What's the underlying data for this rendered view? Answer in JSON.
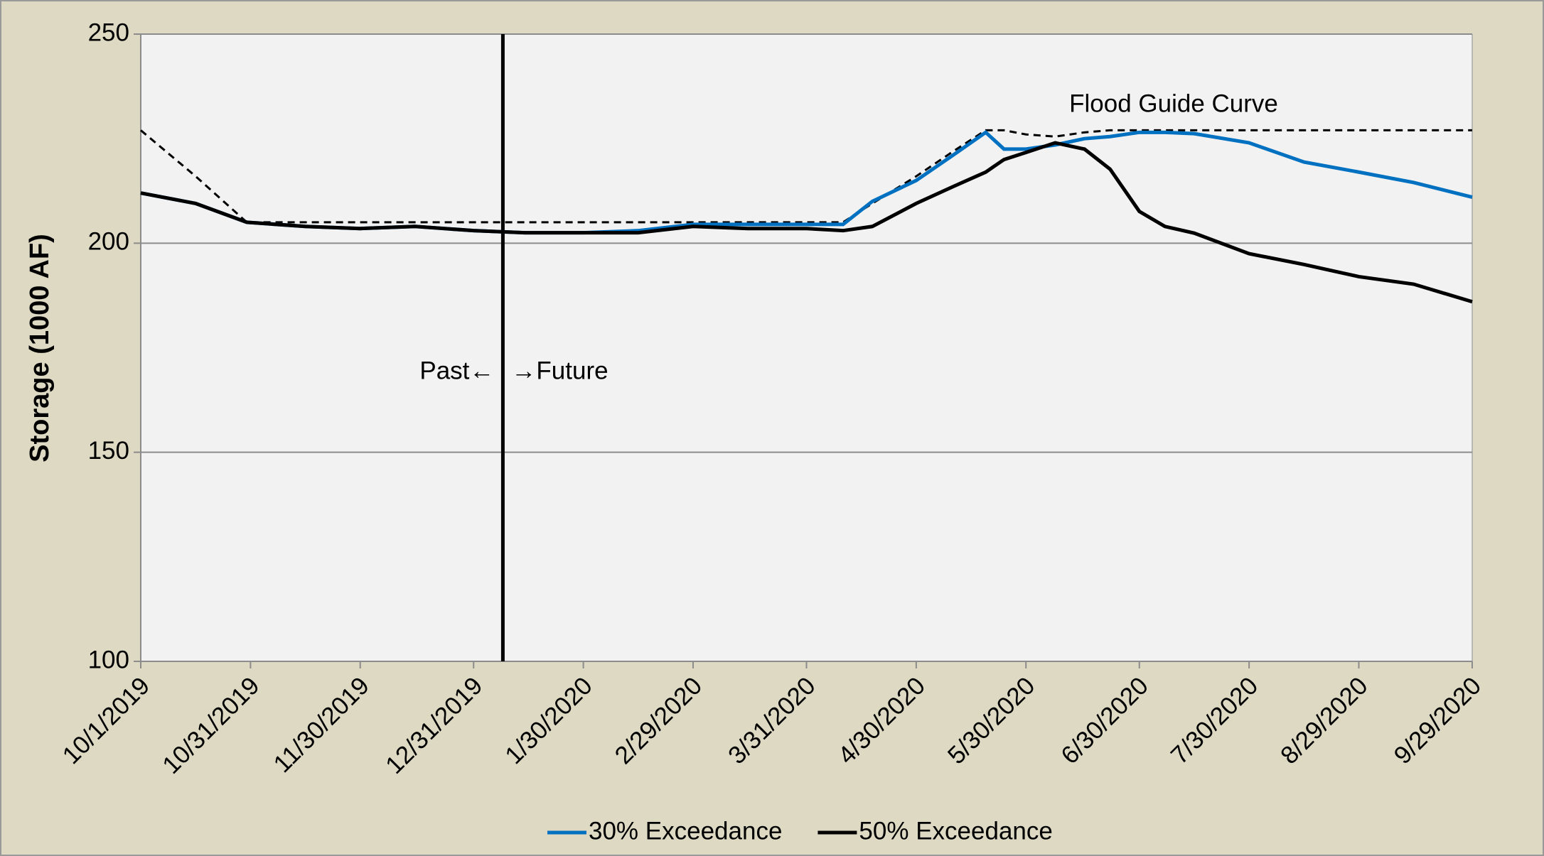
{
  "chart_data": {
    "type": "line",
    "y_label": "Storage (1000 AF)",
    "x": [
      "10/1/2019",
      "10/16/2019",
      "10/30/2019",
      "11/15/2019",
      "11/30/2019",
      "12/15/2019",
      "12/31/2019",
      "1/14/2020",
      "1/30/2020",
      "2/14/2020",
      "2/29/2020",
      "3/15/2020",
      "3/31/2020",
      "4/10/2020",
      "4/18/2020",
      "4/30/2020",
      "5/10/2020",
      "5/19/2020",
      "5/24/2020",
      "5/30/2020",
      "6/7/2020",
      "6/15/2020",
      "6/22/2020",
      "6/30/2020",
      "7/7/2020",
      "7/15/2020",
      "7/30/2020",
      "8/14/2020",
      "8/29/2020",
      "9/13/2020",
      "9/29/2020"
    ],
    "series": [
      {
        "name": "30% Exceedance",
        "color": "#0070c0",
        "values": [
          212,
          209.5,
          205,
          204,
          203.5,
          204,
          203,
          202.5,
          202.5,
          203,
          204.5,
          204.5,
          204.5,
          204.5,
          210,
          215,
          221,
          226.5,
          222.5,
          222.5,
          223.5,
          225,
          225.5,
          226.5,
          226.5,
          226.2,
          224,
          219.4,
          217,
          214.5,
          211
        ]
      },
      {
        "name": "50% Exceedance",
        "color": "#000000",
        "values": [
          212,
          209.5,
          205,
          204,
          203.5,
          204,
          203,
          202.5,
          202.5,
          202.5,
          204,
          203.5,
          203.5,
          203,
          204,
          209.5,
          213.5,
          217,
          220,
          221.7,
          224,
          222.5,
          217.7,
          207.6,
          204,
          202.4,
          197.5,
          194.9,
          192,
          190.2,
          186
        ]
      }
    ],
    "flood_guide": {
      "label": "Flood Guide Curve",
      "color": "#000000",
      "values": [
        227,
        216,
        205,
        205,
        205,
        205,
        205,
        205,
        205,
        205,
        205,
        205,
        205,
        205,
        209.5,
        216,
        221.9,
        227,
        227,
        226,
        225.5,
        226.5,
        227,
        227,
        227,
        227,
        227,
        227,
        227,
        227,
        227
      ]
    },
    "divider": {
      "x": "1/8/2020",
      "past_label": "Past←",
      "future_label": "→Future"
    },
    "xlim": [
      "10/1/2019",
      "9/29/2020"
    ],
    "xticks": [
      "10/1/2019",
      "10/31/2019",
      "11/30/2019",
      "12/31/2019",
      "1/30/2020",
      "2/29/2020",
      "3/31/2020",
      "4/30/2020",
      "5/30/2020",
      "6/30/2020",
      "7/30/2020",
      "8/29/2020",
      "9/29/2020"
    ],
    "ylim": [
      100,
      250
    ],
    "yticks": [
      100,
      150,
      200,
      250
    ],
    "grid": true,
    "legend": "bottom"
  }
}
